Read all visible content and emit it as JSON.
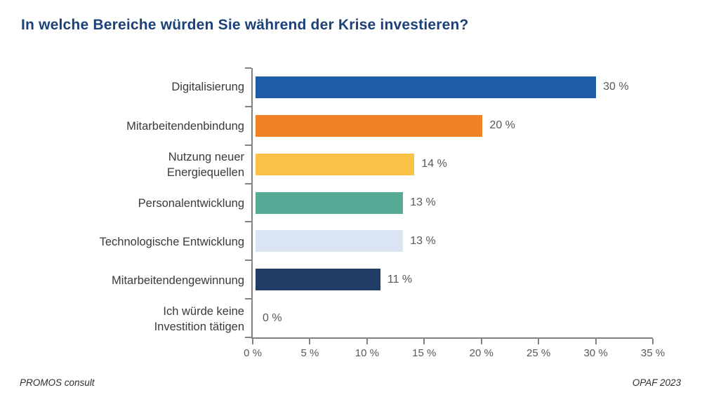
{
  "chart": {
    "title": "In welche Bereiche würden Sie während der Krise investieren?",
    "footer_left": "PROMOS consult",
    "footer_right": "OPAF 2023"
  },
  "chart_data": {
    "type": "bar",
    "orientation": "horizontal",
    "title": "In welche Bereiche würden Sie während der Krise investieren?",
    "categories": [
      "Digitalisierung",
      "Mitarbeitendenbindung",
      "Nutzung neuer\nEnergiequellen",
      "Personalentwicklung",
      "Technologische Entwicklung",
      "Mitarbeitendengewinnung",
      "Ich würde keine\nInvestition tätigen"
    ],
    "values": [
      30,
      20,
      14,
      13,
      13,
      11,
      0
    ],
    "value_labels": [
      "30 %",
      "20 %",
      "14 %",
      "13 %",
      "13 %",
      "11 %",
      "0 %"
    ],
    "bar_colors": [
      "#1F5CA8",
      "#F08124",
      "#FAC348",
      "#56AB97",
      "#D9E5F3",
      "#1E3C64",
      "#1E3C64"
    ],
    "xlim": [
      0,
      35
    ],
    "x_ticks": [
      0,
      5,
      10,
      15,
      20,
      25,
      30,
      35
    ],
    "x_tick_labels": [
      "0 %",
      "5 %",
      "10 %",
      "15 %",
      "20 %",
      "25 %",
      "30 %",
      "35 %"
    ],
    "xlabel": "",
    "ylabel": "",
    "legend": "none",
    "grid": false
  },
  "colors": {
    "title": "#1B4178",
    "axis": "#828282",
    "category_label": "#3A3A3A",
    "value_label": "#595959",
    "tick_label": "#595959",
    "footer": "#2E2E2E"
  }
}
